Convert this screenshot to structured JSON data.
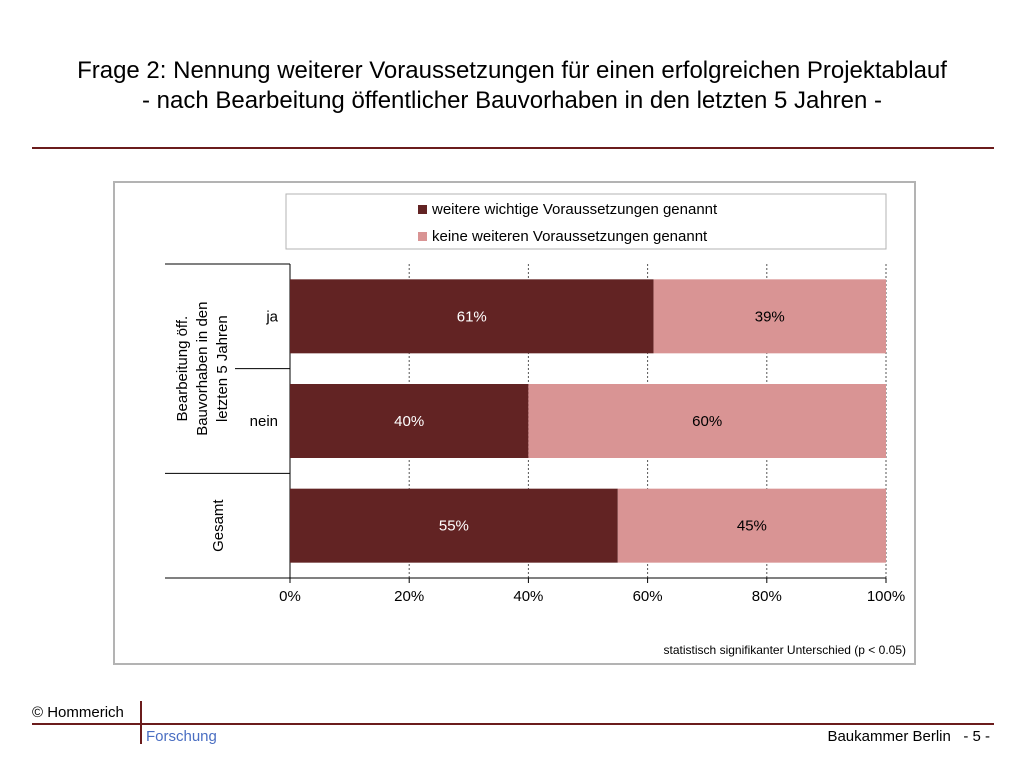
{
  "slide": {
    "title_line1": "Frage 2: Nennung weiterer Voraussetzungen für einen erfolgreichen Projektablauf",
    "title_line2": "- nach Bearbeitung öffentlicher Bauvorhaben in den letzten 5 Jahren -"
  },
  "footer": {
    "copyright": "© Hommerich",
    "brand": "Forschung",
    "right": "Baukammer Berlin   - 5 -"
  },
  "chart_data": {
    "type": "bar",
    "orientation": "horizontal",
    "stacked": true,
    "categories": [
      "ja",
      "nein",
      "Gesamt"
    ],
    "group_label": [
      "Bearbeitung öff.",
      "Bauvorhaben in den",
      "letzten 5 Jahren"
    ],
    "series": [
      {
        "name": "weitere wichtige Voraussetzungen genannt",
        "values": [
          61,
          40,
          55
        ],
        "labels": [
          "61%",
          "40%",
          "55%"
        ],
        "color": "#622323"
      },
      {
        "name": "keine weiteren Voraussetzungen genannt",
        "values": [
          39,
          60,
          45
        ],
        "labels": [
          "39%",
          "60%",
          "45%"
        ],
        "color": "#d99494"
      }
    ],
    "xticks": [
      "0%",
      "20%",
      "40%",
      "60%",
      "80%",
      "100%"
    ],
    "xlim": [
      0,
      100
    ],
    "grid": true,
    "legend_position": "top",
    "note": "statistisch  signifikanter Unterschied   (p < 0.05)"
  }
}
